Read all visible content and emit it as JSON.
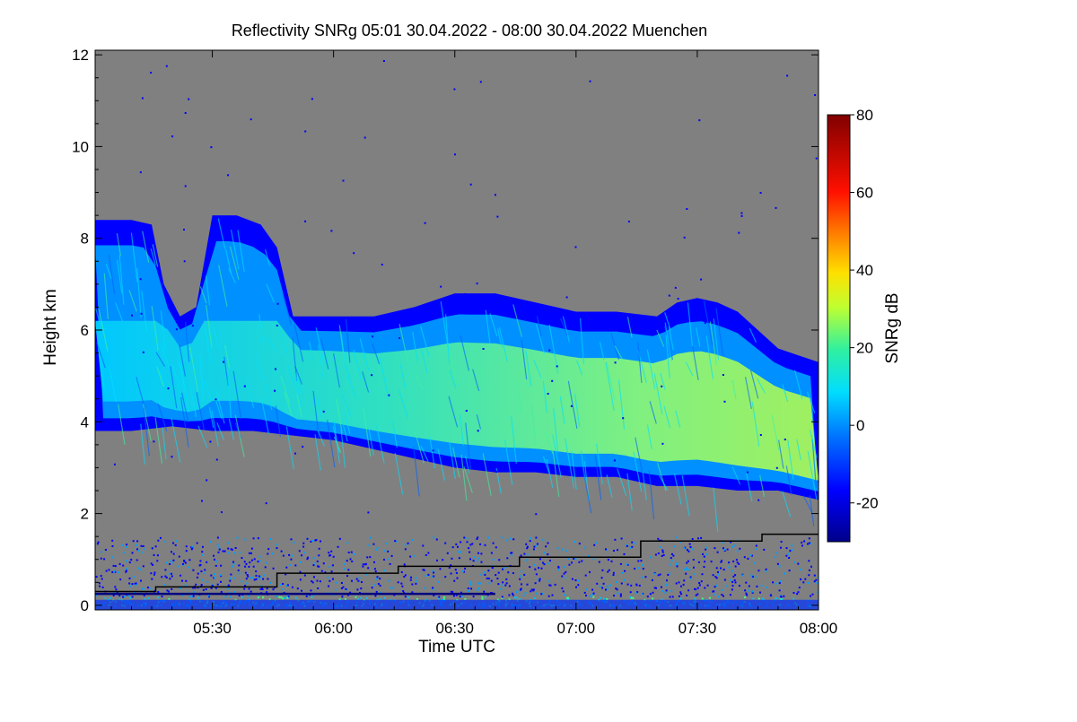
{
  "chart_data": {
    "type": "heatmap",
    "title": "Reflectivity SNRg   05:01 30.04.2022 - 08:00 30.04.2022 Muenchen",
    "xlabel": "Time UTC",
    "ylabel": "Height km",
    "colorbar_label": "SNRg dB",
    "x_range_minutes_utc": [
      301,
      480
    ],
    "x_ticks": [
      {
        "label": "05:30",
        "minutes": 330
      },
      {
        "label": "06:00",
        "minutes": 360
      },
      {
        "label": "06:30",
        "minutes": 390
      },
      {
        "label": "07:00",
        "minutes": 420
      },
      {
        "label": "07:30",
        "minutes": 450
      },
      {
        "label": "08:00",
        "minutes": 480
      }
    ],
    "ylim": [
      -0.1,
      12.1
    ],
    "y_ticks": [
      0,
      2,
      4,
      6,
      8,
      10,
      12
    ],
    "color_range_db": [
      -30,
      80
    ],
    "color_ticks": [
      -20,
      0,
      20,
      40,
      60,
      80
    ],
    "background_color": "#808080",
    "cloud_top_km": [
      [
        301,
        8.4
      ],
      [
        310,
        8.4
      ],
      [
        315,
        8.3
      ],
      [
        318,
        7.0
      ],
      [
        322,
        6.3
      ],
      [
        326,
        6.5
      ],
      [
        330,
        8.5
      ],
      [
        336,
        8.5
      ],
      [
        342,
        8.3
      ],
      [
        346,
        7.8
      ],
      [
        350,
        6.3
      ],
      [
        360,
        6.3
      ],
      [
        370,
        6.3
      ],
      [
        380,
        6.5
      ],
      [
        390,
        6.8
      ],
      [
        400,
        6.8
      ],
      [
        410,
        6.6
      ],
      [
        420,
        6.4
      ],
      [
        430,
        6.4
      ],
      [
        440,
        6.3
      ],
      [
        445,
        6.6
      ],
      [
        450,
        6.7
      ],
      [
        455,
        6.6
      ],
      [
        460,
        6.4
      ],
      [
        470,
        5.6
      ],
      [
        480,
        5.3
      ]
    ],
    "cloud_base_km": [
      [
        301,
        3.8
      ],
      [
        310,
        3.8
      ],
      [
        320,
        3.9
      ],
      [
        330,
        3.8
      ],
      [
        340,
        3.8
      ],
      [
        350,
        3.7
      ],
      [
        360,
        3.6
      ],
      [
        370,
        3.4
      ],
      [
        380,
        3.2
      ],
      [
        390,
        3.0
      ],
      [
        400,
        2.9
      ],
      [
        410,
        2.9
      ],
      [
        420,
        2.8
      ],
      [
        430,
        2.8
      ],
      [
        440,
        2.6
      ],
      [
        450,
        2.6
      ],
      [
        460,
        2.5
      ],
      [
        470,
        2.5
      ],
      [
        480,
        2.3
      ]
    ],
    "black_step_line_km": [
      [
        301,
        0.3
      ],
      [
        316,
        0.3
      ],
      [
        316,
        0.4
      ],
      [
        346,
        0.4
      ],
      [
        346,
        0.7
      ],
      [
        376,
        0.7
      ],
      [
        376,
        0.85
      ],
      [
        406,
        0.85
      ],
      [
        406,
        1.05
      ],
      [
        436,
        1.05
      ],
      [
        436,
        1.4
      ],
      [
        466,
        1.4
      ],
      [
        466,
        1.55
      ],
      [
        480,
        1.55
      ]
    ]
  }
}
